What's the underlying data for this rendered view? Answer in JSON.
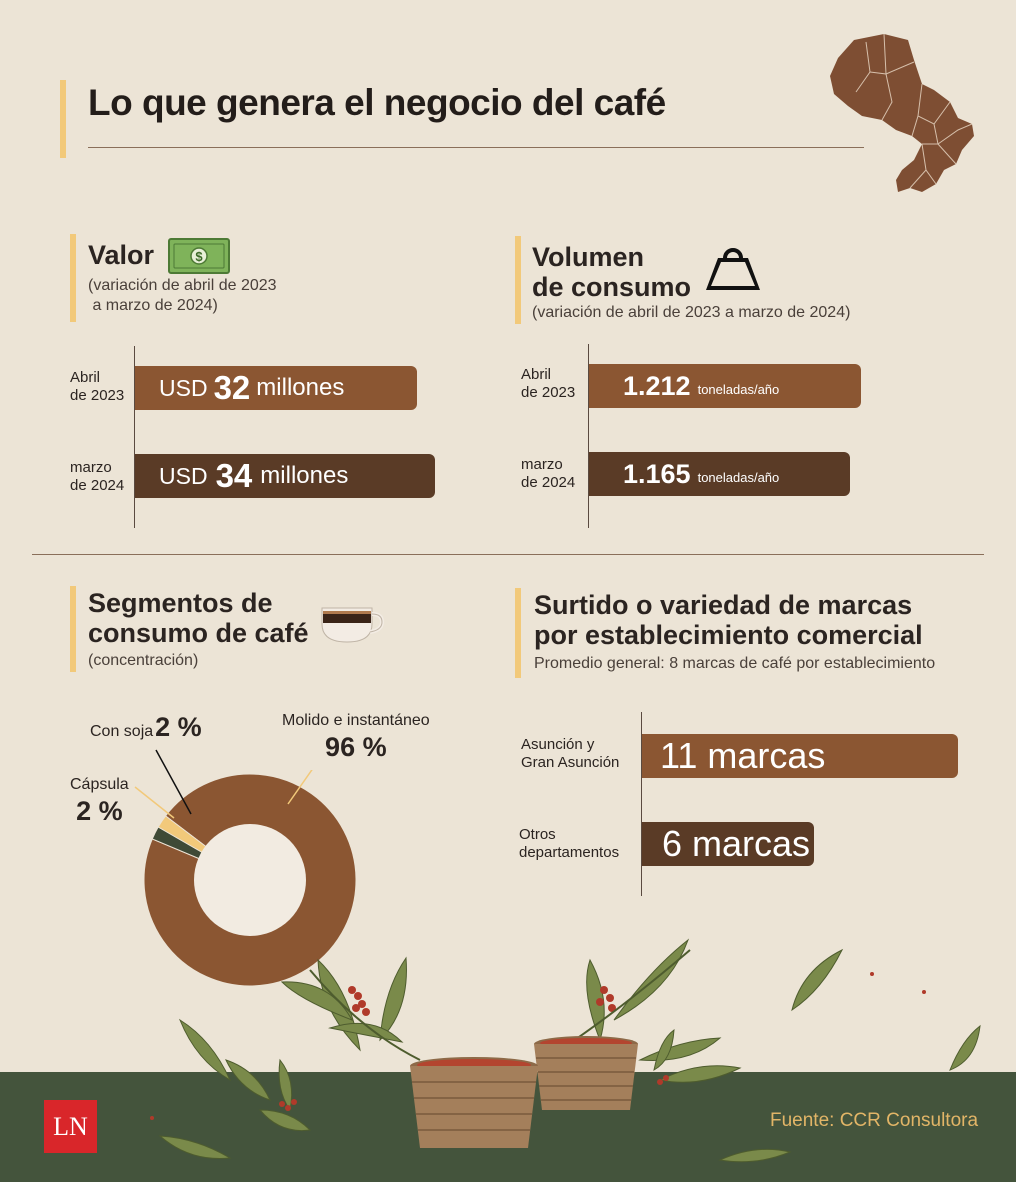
{
  "header": {
    "title": "Lo que genera el negocio del café"
  },
  "valor": {
    "title": "Valor",
    "subtitle_line1": "(variación de abril de 2023",
    "subtitle_line2": " a marzo de 2024)",
    "rows": [
      {
        "label_line1": "Abril",
        "label_line2": "de 2023",
        "prefix": "USD",
        "number": "32",
        "suffix": "millones",
        "value": 32
      },
      {
        "label_line1": "marzo",
        "label_line2": "de 2024",
        "prefix": "USD",
        "number": "34",
        "suffix": "millones",
        "value": 34
      }
    ]
  },
  "volumen": {
    "title_line1": "Volumen",
    "title_line2": "de consumo",
    "subtitle": "(variación de abril de 2023 a marzo de 2024)",
    "rows": [
      {
        "label_line1": "Abril",
        "label_line2": "de 2023",
        "number": "1.212",
        "unit": "toneladas/año",
        "value": 1212
      },
      {
        "label_line1": "marzo",
        "label_line2": "de 2024",
        "number": "1.165",
        "unit": "toneladas/año",
        "value": 1165
      }
    ]
  },
  "segmentos": {
    "title_line1": "Segmentos de",
    "title_line2": "consumo de café",
    "subtitle": "(concentración)",
    "slices": [
      {
        "name": "Molido e instantáneo",
        "value_text": "96 %",
        "value": 96,
        "color": "#8b5632"
      },
      {
        "name": "Con soja",
        "value_text": "2 %",
        "value": 2,
        "color": "#f2c97a"
      },
      {
        "name": "Cápsula",
        "value_text": "2 %",
        "value": 2,
        "color": "#3f4a36"
      }
    ]
  },
  "surtido": {
    "title_line1": "Surtido o variedad de marcas",
    "title_line2": "por establecimiento comercial",
    "subtitle": "Promedio general: 8 marcas de café por establecimiento",
    "rows": [
      {
        "label_line1": "Asunción y",
        "label_line2": "Gran Asunción",
        "text": "11 marcas",
        "value": 11
      },
      {
        "label_line1": "Otros",
        "label_line2": "departamentos",
        "text": "6 marcas",
        "value": 6
      }
    ]
  },
  "chart_data": [
    {
      "type": "bar",
      "title": "Valor",
      "categories": [
        "Abril de 2023",
        "marzo de 2024"
      ],
      "values": [
        32,
        34
      ],
      "ylabel": "USD millones"
    },
    {
      "type": "bar",
      "title": "Volumen de consumo",
      "categories": [
        "Abril de 2023",
        "marzo de 2024"
      ],
      "values": [
        1212,
        1165
      ],
      "ylabel": "toneladas/año"
    },
    {
      "type": "pie",
      "title": "Segmentos de consumo de café",
      "categories": [
        "Molido e instantáneo",
        "Con soja",
        "Cápsula"
      ],
      "values": [
        96,
        2,
        2
      ]
    },
    {
      "type": "bar",
      "title": "Surtido o variedad de marcas por establecimiento comercial",
      "categories": [
        "Asunción y Gran Asunción",
        "Otros departamentos"
      ],
      "values": [
        11,
        6
      ]
    }
  ],
  "footer": {
    "logo": "LN",
    "source": "Fuente: CCR Consultora"
  },
  "colors": {
    "background": "#ece4d6",
    "bar_light": "#8b5632",
    "bar_dark": "#5a3b26",
    "accent": "#f2c97a",
    "ground": "#44543c",
    "source_text": "#e2b567",
    "logo_red": "#d9262a"
  },
  "icons": [
    "paraguay-map-icon",
    "money-bill-icon",
    "weight-icon",
    "coffee-cup-icon",
    "coffee-plant-illustration",
    "basket-icon"
  ]
}
